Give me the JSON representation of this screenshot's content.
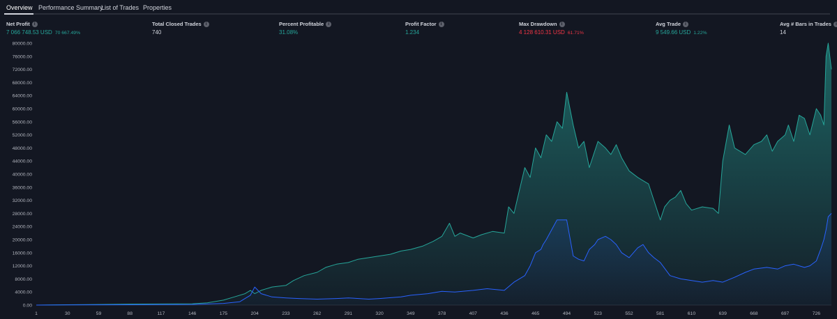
{
  "tabs": [
    {
      "label": "Overview",
      "active": true
    },
    {
      "label": "Performance Summary",
      "active": false
    },
    {
      "label": "List of Trades",
      "active": false
    },
    {
      "label": "Properties",
      "active": false
    }
  ],
  "stats": {
    "net_profit": {
      "label": "Net Profit",
      "value": "7 066 748.53 USD",
      "pct": "70 667.49%"
    },
    "total_closed_trades": {
      "label": "Total Closed Trades",
      "value": "740"
    },
    "percent_profitable": {
      "label": "Percent Profitable",
      "value": "31.08%"
    },
    "profit_factor": {
      "label": "Profit Factor",
      "value": "1.234"
    },
    "max_drawdown": {
      "label": "Max Drawdown",
      "value": "4 128 610.31 USD",
      "pct": "61.71%"
    },
    "avg_trade": {
      "label": "Avg Trade",
      "value": "9 549.66 USD",
      "pct": "1.22%"
    },
    "avg_bars": {
      "label": "Avg # Bars in Trades",
      "value": "14"
    }
  },
  "info_icon_glyph": "i",
  "colors": {
    "background": "#131722",
    "equity_line": "#26a69a",
    "buyhold_line": "#2962ff",
    "positive": "#26a69a",
    "negative": "#f23645",
    "text": "#d1d4dc"
  },
  "chart_data": {
    "type": "area",
    "xlabel": "",
    "ylabel": "",
    "xlim": [
      1,
      740
    ],
    "ylim": [
      0,
      80000
    ],
    "x_ticks": [
      1,
      30,
      59,
      88,
      117,
      146,
      175,
      204,
      233,
      262,
      291,
      320,
      349,
      378,
      407,
      436,
      465,
      494,
      523,
      552,
      581,
      610,
      639,
      668,
      697,
      726
    ],
    "y_ticks": [
      "0.00",
      "4000.00",
      "8000.00",
      "12000.00",
      "16000.00",
      "20000.00",
      "24000.00",
      "28000.00",
      "32000.00",
      "36000.00",
      "40000.00",
      "44000.00",
      "48000.00",
      "52000.00",
      "56000.00",
      "60000.00",
      "64000.00",
      "68000.00",
      "72000.00",
      "76000.00",
      "80000.00"
    ],
    "grid": false,
    "series": [
      {
        "x": [
          1,
          30,
          59,
          88,
          117,
          146,
          160,
          175,
          185,
          195,
          200,
          204,
          210,
          220,
          233,
          240,
          250,
          262,
          270,
          280,
          291,
          300,
          310,
          320,
          330,
          340,
          349,
          360,
          370,
          378,
          385,
          390,
          395,
          407,
          415,
          425,
          436,
          440,
          445,
          450,
          455,
          460,
          465,
          470,
          475,
          480,
          485,
          490,
          494,
          500,
          505,
          510,
          515,
          520,
          523,
          530,
          535,
          540,
          545,
          552,
          560,
          565,
          570,
          575,
          581,
          585,
          590,
          595,
          600,
          605,
          610,
          620,
          630,
          635,
          639,
          645,
          650,
          660,
          668,
          675,
          680,
          685,
          690,
          697,
          700,
          705,
          710,
          715,
          720,
          726,
          730,
          733,
          735,
          737,
          740
        ],
        "values": [
          0,
          100,
          200,
          300,
          350,
          400,
          700,
          1500,
          2500,
          3500,
          4500,
          3500,
          4500,
          5500,
          6000,
          7500,
          9000,
          10000,
          11500,
          12500,
          13000,
          14000,
          14500,
          15000,
          15500,
          16500,
          17000,
          18000,
          19500,
          21000,
          25000,
          21000,
          22000,
          20500,
          21500,
          22500,
          22000,
          30000,
          28000,
          35000,
          42000,
          39000,
          48000,
          45000,
          52000,
          50000,
          56000,
          54000,
          65000,
          55000,
          48000,
          50000,
          42000,
          47000,
          50000,
          48000,
          46000,
          49000,
          45000,
          41000,
          39000,
          38000,
          37000,
          32000,
          26000,
          30000,
          32000,
          33000,
          35000,
          31000,
          29000,
          30000,
          29500,
          28000,
          44000,
          55000,
          48000,
          46000,
          49000,
          50000,
          52000,
          47000,
          50000,
          52000,
          55000,
          50000,
          58000,
          57000,
          52000,
          60000,
          58000,
          55000,
          76000,
          80000,
          72000
        ]
      },
      {
        "x": [
          1,
          30,
          59,
          88,
          117,
          146,
          175,
          190,
          195,
          200,
          204,
          210,
          220,
          233,
          245,
          262,
          280,
          291,
          310,
          320,
          340,
          349,
          365,
          378,
          390,
          407,
          420,
          436,
          445,
          450,
          455,
          460,
          465,
          470,
          472,
          475,
          480,
          485,
          494,
          500,
          505,
          510,
          515,
          520,
          523,
          530,
          535,
          540,
          545,
          552,
          560,
          565,
          570,
          575,
          581,
          590,
          600,
          610,
          620,
          630,
          639,
          650,
          660,
          668,
          680,
          690,
          697,
          705,
          710,
          715,
          720,
          726,
          730,
          733,
          735,
          737,
          740
        ],
        "values": [
          0,
          50,
          80,
          100,
          150,
          200,
          500,
          1000,
          2000,
          3000,
          5500,
          3500,
          2500,
          2200,
          2000,
          1800,
          2000,
          2200,
          1800,
          2000,
          2500,
          3000,
          3500,
          4200,
          4000,
          4500,
          5000,
          4500,
          7000,
          8000,
          9000,
          12000,
          16000,
          17000,
          18500,
          20000,
          23000,
          26000,
          26000,
          15000,
          14000,
          13500,
          17000,
          18500,
          20000,
          21000,
          20000,
          18500,
          16000,
          14500,
          17500,
          18500,
          16000,
          14500,
          13000,
          9000,
          8000,
          7500,
          7000,
          7500,
          7000,
          8500,
          10000,
          11000,
          11500,
          11000,
          12000,
          12500,
          12000,
          11500,
          12000,
          13500,
          17000,
          20000,
          23000,
          27000,
          28000
        ]
      }
    ]
  }
}
